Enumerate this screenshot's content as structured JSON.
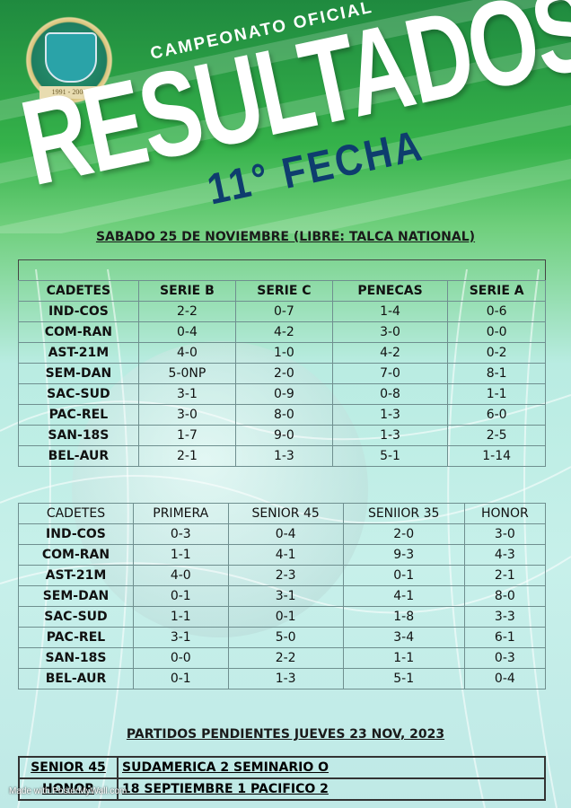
{
  "header": {
    "logo_years": "1991 - 2006",
    "campeonato": "CAMPEONATO OFICIAL",
    "title": "RESULTADOS",
    "fecha": "11° FECHA"
  },
  "subtitle": "SABADO 25 DE NOVIEMBRE (LIBRE: TALCA NATIONAL)",
  "table1": {
    "headers": [
      "CADETES",
      "SERIE B",
      "SERIE C",
      "PENECAS",
      "SERIE A"
    ],
    "rows": [
      [
        "IND-COS",
        "2-2",
        "0-7",
        "1-4",
        "0-6"
      ],
      [
        "COM-RAN",
        "0-4",
        "4-2",
        "3-0",
        "0-0"
      ],
      [
        "AST-21M",
        "4-0",
        "1-0",
        "4-2",
        "0-2"
      ],
      [
        "SEM-DAN",
        "5-0NP",
        "2-0",
        "7-0",
        "8-1"
      ],
      [
        "SAC-SUD",
        "3-1",
        "0-9",
        "0-8",
        "1-1"
      ],
      [
        "PAC-REL",
        "3-0",
        "8-0",
        "1-3",
        "6-0"
      ],
      [
        "SAN-18S",
        "1-7",
        "9-0",
        "1-3",
        "2-5"
      ],
      [
        "BEL-AUR",
        "2-1",
        "1-3",
        "5-1",
        "1-14"
      ]
    ]
  },
  "table2": {
    "headers": [
      "CADETES",
      "PRIMERA",
      "SENIOR 45",
      "SENIIOR 35",
      "HONOR"
    ],
    "rows": [
      [
        "IND-COS",
        "0-3",
        "0-4",
        "2-0",
        "3-0"
      ],
      [
        "COM-RAN",
        "1-1",
        "4-1",
        "9-3",
        "4-3"
      ],
      [
        "AST-21M",
        "4-0",
        "2-3",
        "0-1",
        "2-1"
      ],
      [
        "SEM-DAN",
        "0-1",
        "3-1",
        "4-1",
        "8-0"
      ],
      [
        "SAC-SUD",
        "1-1",
        "0-1",
        "1-8",
        "3-3"
      ],
      [
        "PAC-REL",
        "3-1",
        "5-0",
        "3-4",
        "6-1"
      ],
      [
        "SAN-18S",
        "0-0",
        "2-2",
        "1-1",
        "0-3"
      ],
      [
        "BEL-AUR",
        "0-1",
        "1-3",
        "5-1",
        "0-4"
      ]
    ]
  },
  "pending": {
    "title": "PARTIDOS PENDIENTES JUEVES 23 NOV, 2023",
    "rows": [
      {
        "label": "SENIOR 45",
        "value": "SUDAMERICA 2 SEMINARIO O"
      },
      {
        "label": "HONOR",
        "value": "18 SEPTIEMBRE 1 PACIFICO 2"
      }
    ]
  },
  "footer": {
    "made_with": "Made with PosterMyWall.com"
  },
  "colors": {
    "title_blue": "#0e3d6e",
    "green": "#2fa84a"
  }
}
